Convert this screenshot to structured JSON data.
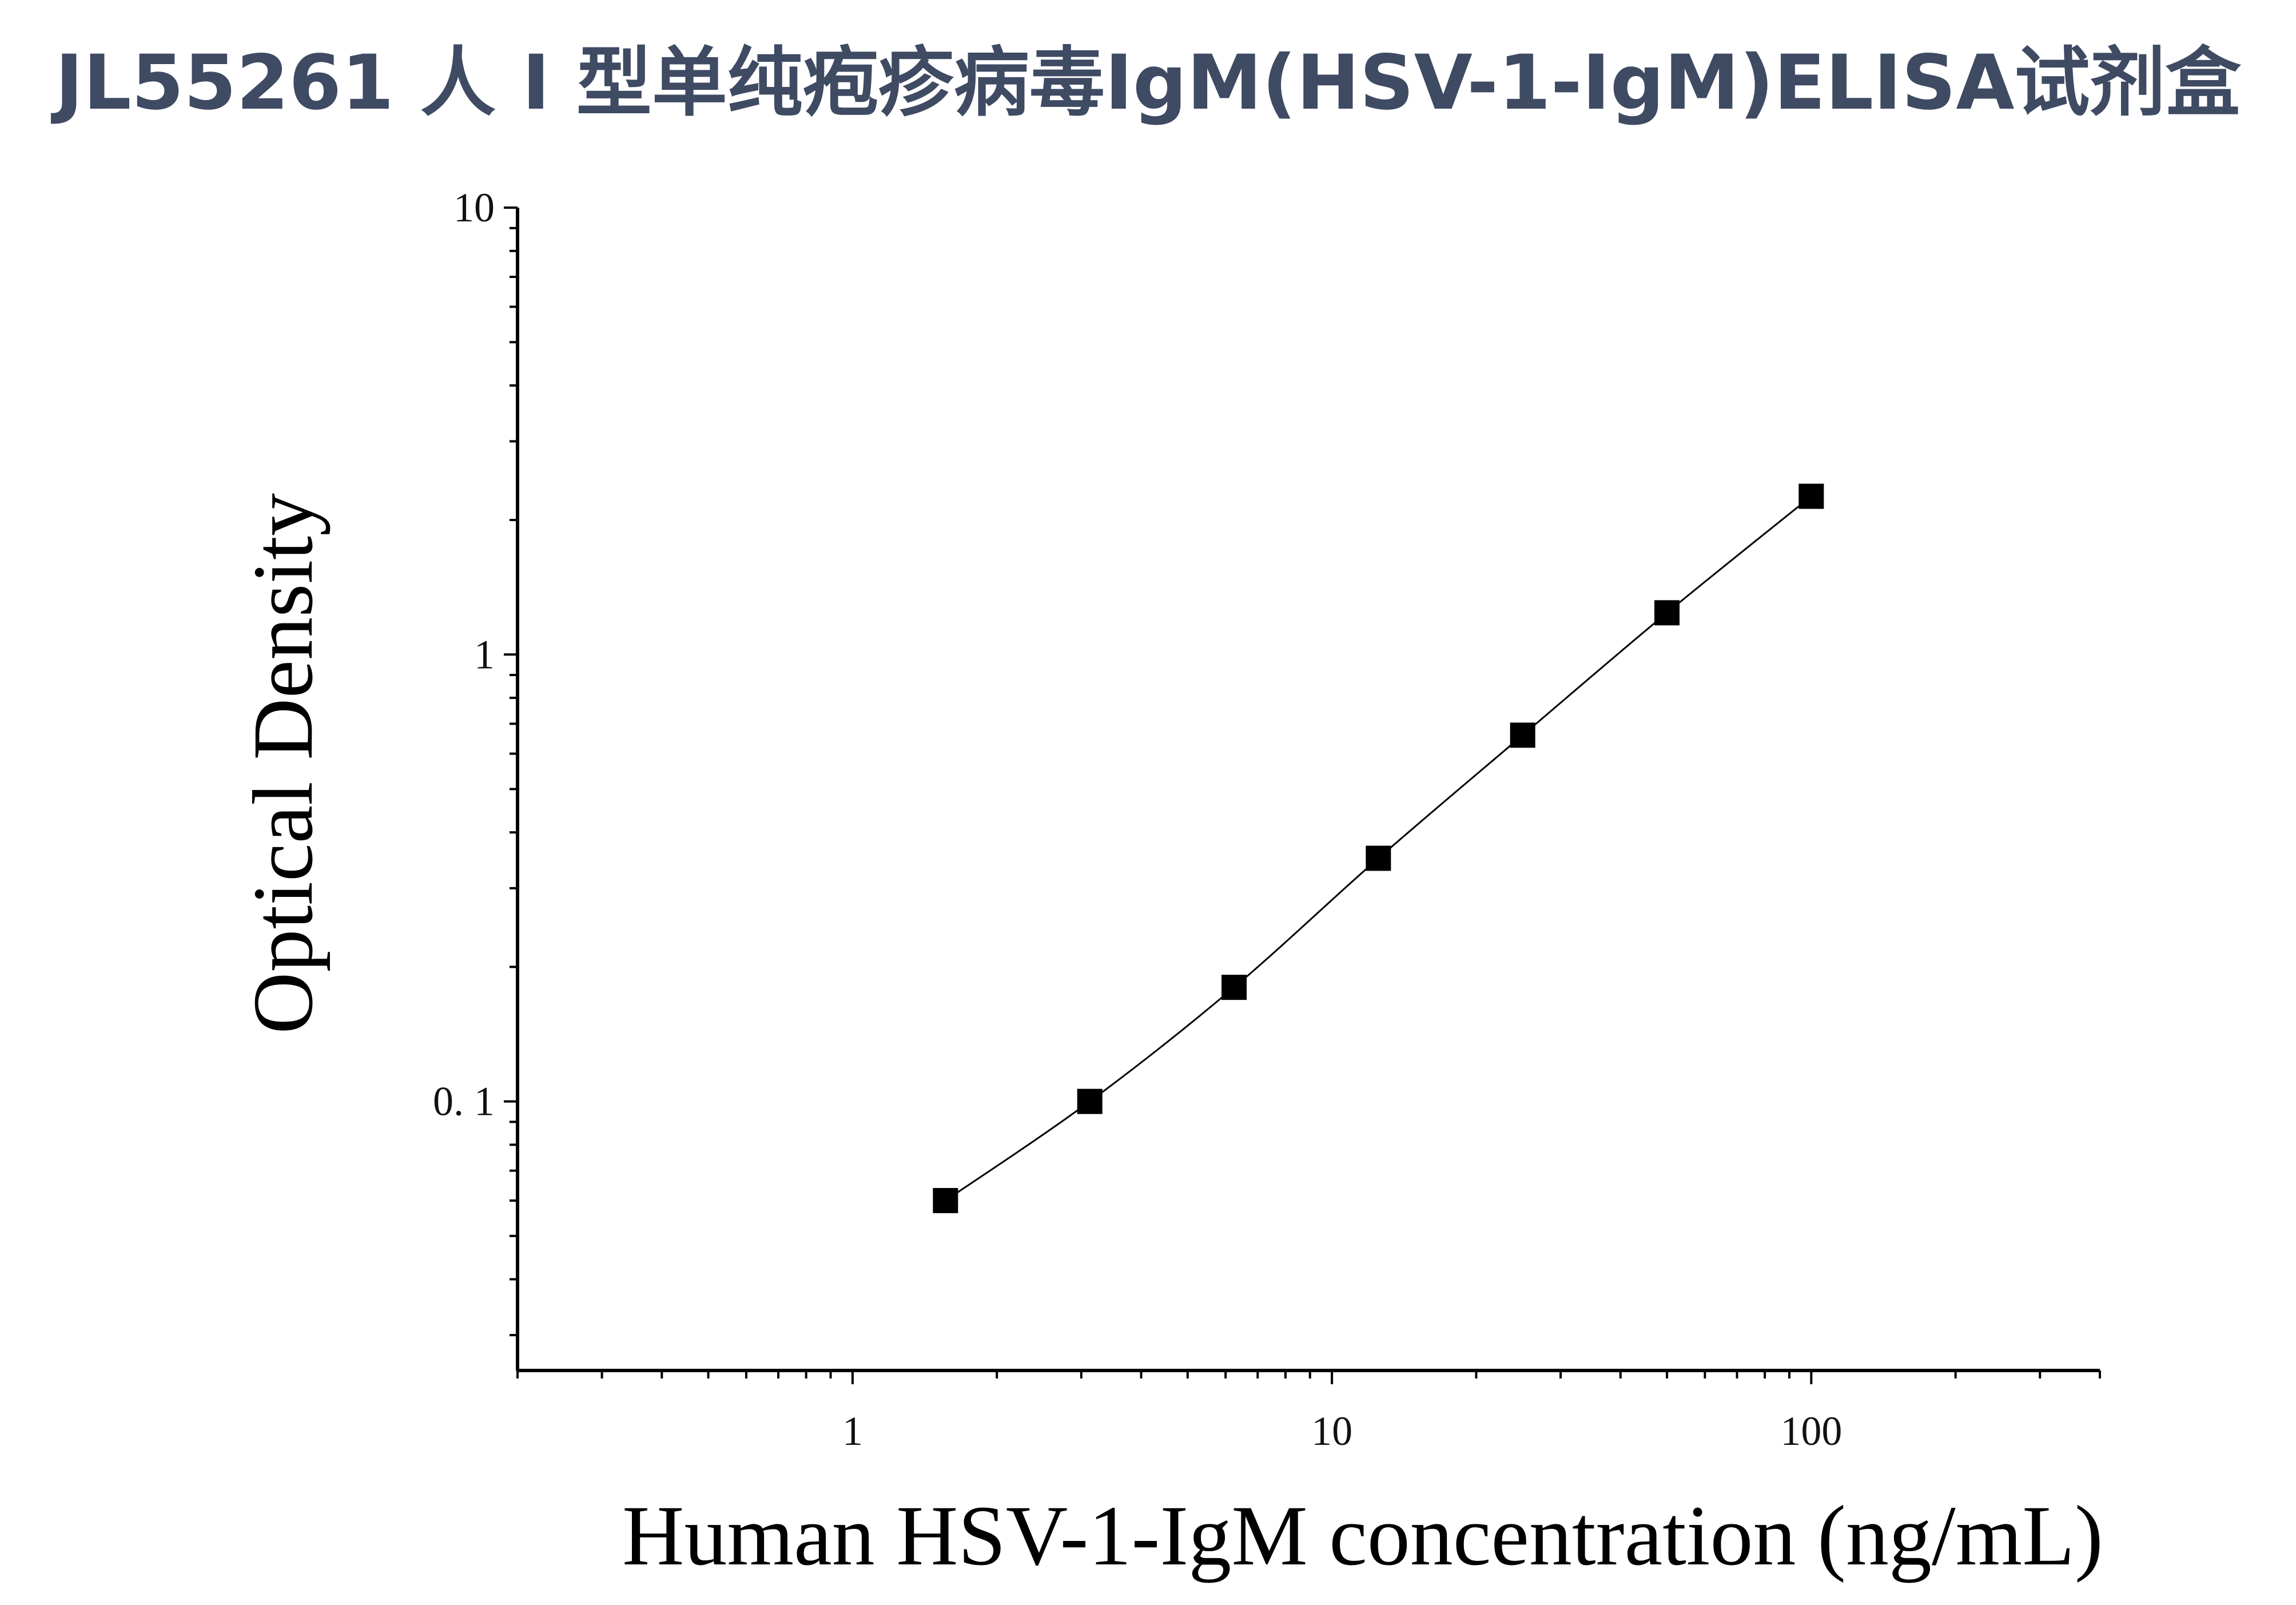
{
  "page": {
    "title": "JL55261 人 I 型单纯疱疹病毒IgM(HSV-1-IgM)ELISA试剂盒"
  },
  "chart_data": {
    "type": "line",
    "title": "JL55261 人 I 型单纯疱疹病毒IgM(HSV-1-IgM)ELISA试剂盒",
    "xlabel": "Human HSV-1-IgM concentration (ng/mL)",
    "ylabel": "Optical Density",
    "x_scale": "log",
    "y_scale": "log",
    "xlim": [
      0.2,
      400
    ],
    "ylim": [
      0.025,
      10
    ],
    "x_ticks": [
      1,
      10,
      100
    ],
    "x_tick_labels": [
      "1",
      "10",
      "100"
    ],
    "y_ticks": [
      0.1,
      1,
      10
    ],
    "y_tick_labels": [
      "0. 1",
      "1",
      "10"
    ],
    "grid": false,
    "legend": "none",
    "marker": "square",
    "color": "#000000",
    "series": [
      {
        "x": [
          1.5625,
          3.125,
          6.25,
          12.5,
          25,
          50,
          100
        ],
        "y": [
          0.06,
          0.1,
          0.18,
          0.35,
          0.66,
          1.24,
          2.26
        ]
      }
    ]
  }
}
